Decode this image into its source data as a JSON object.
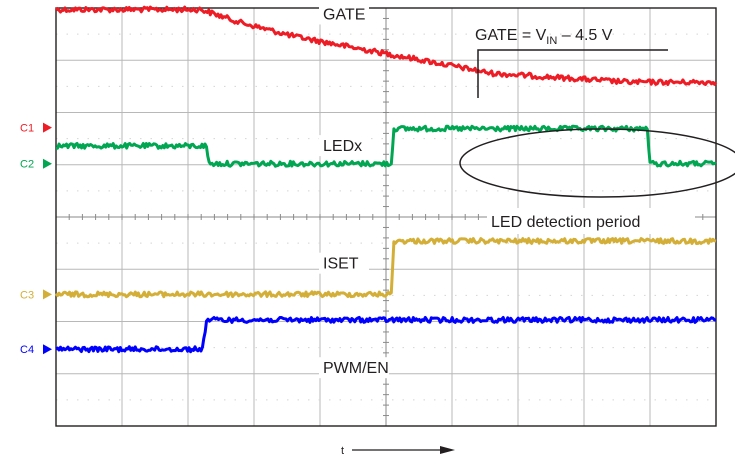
{
  "chart_data": {
    "type": "line",
    "title": "",
    "xlabel": "t",
    "ylabel": "",
    "grid": true,
    "x_divisions": 10,
    "y_divisions": 8,
    "x_range": [
      0,
      10
    ],
    "y_range": [
      0,
      8
    ],
    "series": [
      {
        "name": "GATE",
        "channel": "C1",
        "color": "#ee1c25",
        "label_pos": [
          3.5,
          7.8
        ],
        "points": [
          [
            0,
            7.97
          ],
          [
            2.2,
            7.97
          ],
          [
            2.8,
            7.72
          ],
          [
            3.6,
            7.46
          ],
          [
            4.6,
            7.22
          ],
          [
            5.6,
            6.99
          ],
          [
            6.6,
            6.75
          ],
          [
            8.7,
            6.58
          ],
          [
            10,
            6.58
          ]
        ]
      },
      {
        "name": "LEDx",
        "channel": "C2",
        "color": "#00a651",
        "label_pos": [
          3.5,
          5.28
        ],
        "points": [
          [
            0,
            5.36
          ],
          [
            2.28,
            5.36
          ],
          [
            2.32,
            5.02
          ],
          [
            5.08,
            5.02
          ],
          [
            5.12,
            5.69
          ],
          [
            8.96,
            5.69
          ],
          [
            9.0,
            5.02
          ],
          [
            10,
            5.02
          ]
        ]
      },
      {
        "name": "ISET",
        "channel": "C3",
        "color": "#d4af37",
        "label_pos": [
          3.5,
          3.03
        ],
        "points": [
          [
            0,
            2.52
          ],
          [
            5.08,
            2.52
          ],
          [
            5.12,
            3.54
          ],
          [
            10,
            3.54
          ]
        ]
      },
      {
        "name": "PWM/EN",
        "channel": "C4",
        "color": "#0000ff",
        "label_pos": [
          3.5,
          1.03
        ],
        "points": [
          [
            0,
            1.47
          ],
          [
            2.22,
            1.47
          ],
          [
            2.28,
            2.03
          ],
          [
            10,
            2.03
          ]
        ]
      }
    ],
    "annotations": [
      {
        "text_before_sub": "GATE = V",
        "sub": "IN",
        "text_after_sub": " – 4.5 V"
      },
      {
        "text": "LED detection period"
      }
    ]
  }
}
